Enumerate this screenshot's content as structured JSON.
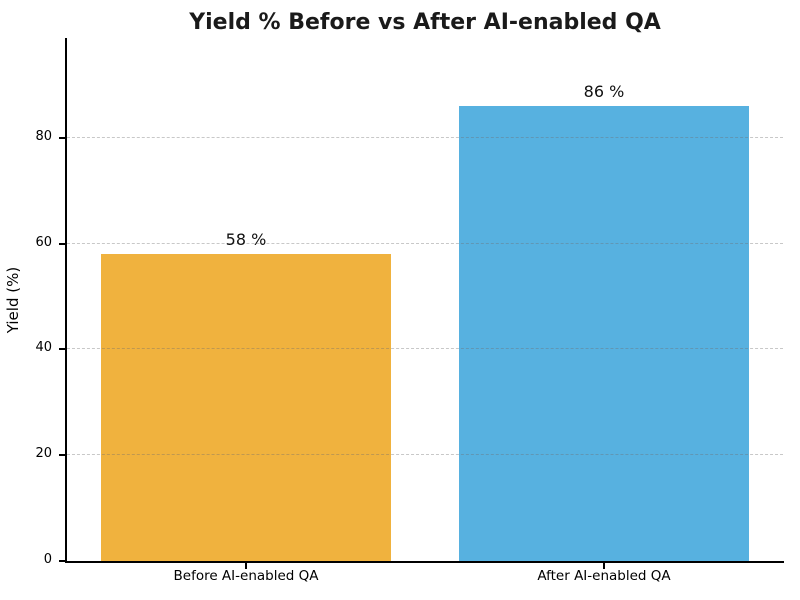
{
  "chart_data": {
    "type": "bar",
    "title": "Yield % Before vs After AI-enabled QA",
    "xlabel": "",
    "ylabel": "Yield (%)",
    "categories": [
      "Before AI-enabled QA",
      "After AI-enabled QA"
    ],
    "values": [
      58,
      86
    ],
    "value_labels": [
      "58 %",
      "86 %"
    ],
    "bar_colors": [
      "#F0B23E",
      "#57B1E0"
    ],
    "yticks": [
      0,
      20,
      40,
      60,
      80
    ],
    "ylim": [
      0,
      98.9
    ],
    "grid": "horizontal-dashed-over-bars",
    "legend": "none"
  },
  "colors": {
    "background": "#ffffff",
    "axis": "#000000",
    "gridline": "#c9c9c9",
    "title_text": "#1a1a1a",
    "before_bar": "#F0B23E",
    "after_bar": "#57B1E0"
  }
}
